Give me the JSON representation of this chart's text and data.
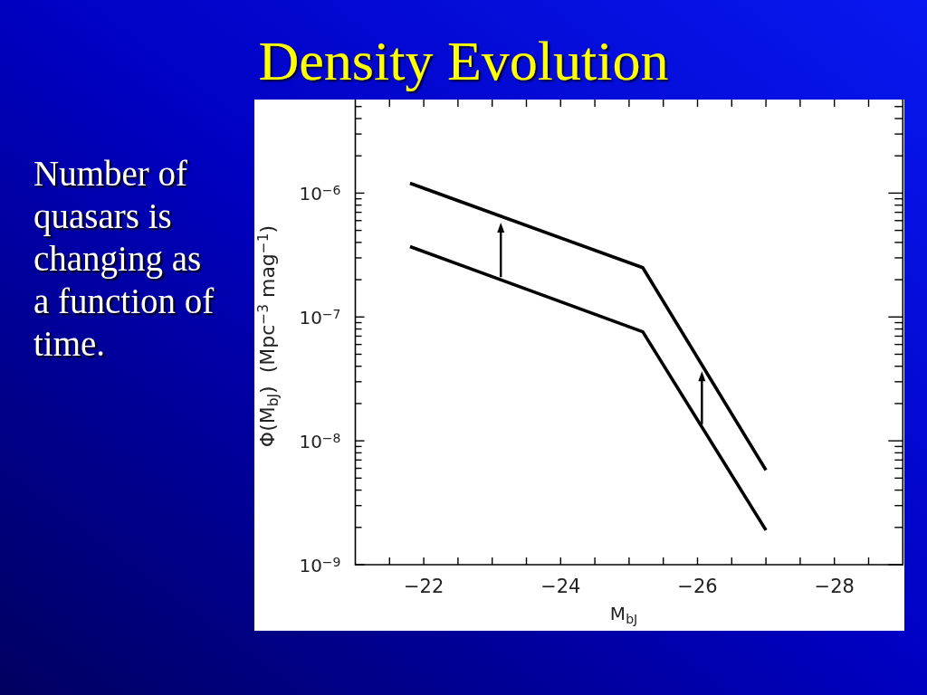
{
  "chart_data": {
    "type": "line",
    "title": "Density Evolution",
    "annotations": [
      "Number of quasars is changing as a function of time."
    ],
    "xlabel": "M$_{bJ}$",
    "ylabel": "Φ(M$_{bJ}$)  (Mpc$^{−3}$ mag$^{−1}$)",
    "log": true,
    "xlim": [
      -21,
      -29
    ],
    "ylim": [
      1e-09,
      5.6e-06
    ],
    "xticks": [
      {
        "value": -21.5,
        "label": null
      },
      {
        "value": -22,
        "label": "−22"
      },
      {
        "value": -22.5,
        "label": null
      },
      {
        "value": -23,
        "label": null
      },
      {
        "value": -23.5,
        "label": null
      },
      {
        "value": -24,
        "label": "−24"
      },
      {
        "value": -24.5,
        "label": null
      },
      {
        "value": -25,
        "label": null
      },
      {
        "value": -25.5,
        "label": null
      },
      {
        "value": -26,
        "label": "−26"
      },
      {
        "value": -26.5,
        "label": null
      },
      {
        "value": -27,
        "label": null
      },
      {
        "value": -27.5,
        "label": null
      },
      {
        "value": -28,
        "label": "−28"
      },
      {
        "value": -28.5,
        "label": null
      }
    ],
    "yticks": [
      {
        "value": 1e-09,
        "label": "10$^{−9}$"
      },
      {
        "value": 2e-09,
        "label": null
      },
      {
        "value": 3e-09,
        "label": null
      },
      {
        "value": 4e-09,
        "label": null
      },
      {
        "value": 5e-09,
        "label": null
      },
      {
        "value": 6e-09,
        "label": null
      },
      {
        "value": 7e-09,
        "label": null
      },
      {
        "value": 8e-09,
        "label": null
      },
      {
        "value": 9e-09,
        "label": null
      },
      {
        "value": 1e-08,
        "label": "10$^{−8}$"
      },
      {
        "value": 2e-08,
        "label": null
      },
      {
        "value": 3e-08,
        "label": null
      },
      {
        "value": 4e-08,
        "label": null
      },
      {
        "value": 5e-08,
        "label": null
      },
      {
        "value": 6e-08,
        "label": null
      },
      {
        "value": 7e-08,
        "label": null
      },
      {
        "value": 8e-08,
        "label": null
      },
      {
        "value": 9e-08,
        "label": null
      },
      {
        "value": 1e-07,
        "label": "10$^{−7}$"
      },
      {
        "value": 2e-07,
        "label": null
      },
      {
        "value": 3e-07,
        "label": null
      },
      {
        "value": 4e-07,
        "label": null
      },
      {
        "value": 5e-07,
        "label": null
      },
      {
        "value": 6e-07,
        "label": null
      },
      {
        "value": 7e-07,
        "label": null
      },
      {
        "value": 8e-07,
        "label": null
      },
      {
        "value": 9e-07,
        "label": null
      },
      {
        "value": 1e-06,
        "label": "10$^{−6}$"
      },
      {
        "value": 2e-06,
        "label": null
      },
      {
        "value": 3e-06,
        "label": null
      },
      {
        "value": 4e-06,
        "label": null
      },
      {
        "value": 5e-06,
        "label": null
      }
    ],
    "x": [
      -21.8,
      -25.2,
      -27
    ],
    "series": [
      {
        "color": "#000000",
        "values": [
          1.2e-06,
          2.5e-07,
          5.8e-09
        ]
      },
      {
        "color": "#000000",
        "values": [
          3.7e-07,
          7.6e-08,
          1.9e-09
        ]
      }
    ]
  }
}
